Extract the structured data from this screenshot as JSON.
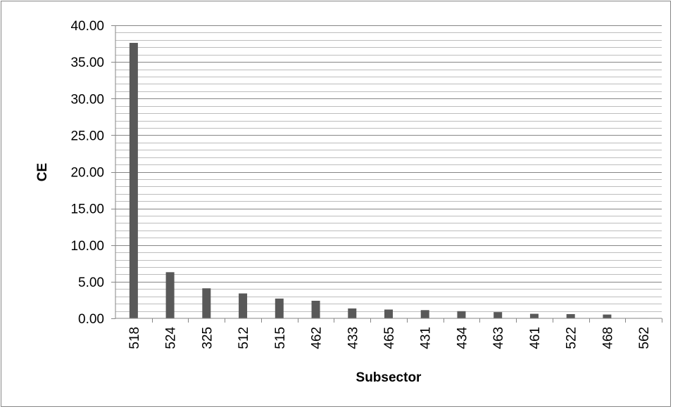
{
  "chart_data": {
    "type": "bar",
    "title": "",
    "xlabel": "Subsector",
    "ylabel": "CE",
    "categories": [
      "518",
      "524",
      "325",
      "512",
      "515",
      "462",
      "433",
      "465",
      "431",
      "434",
      "463",
      "461",
      "522",
      "468",
      "562"
    ],
    "values": [
      37.6,
      6.3,
      4.1,
      3.4,
      2.7,
      2.4,
      1.35,
      1.2,
      1.12,
      0.98,
      0.85,
      0.62,
      0.58,
      0.52,
      0.05
    ],
    "ylim": [
      0,
      40
    ],
    "y_ticks": [
      "0.00",
      "5.00",
      "10.00",
      "15.00",
      "20.00",
      "25.00",
      "30.00",
      "35.00",
      "40.00"
    ],
    "y_minor_step": 1,
    "grid": true,
    "legend": "none",
    "bar_color": "#595959",
    "grid_color": "#868686"
  }
}
